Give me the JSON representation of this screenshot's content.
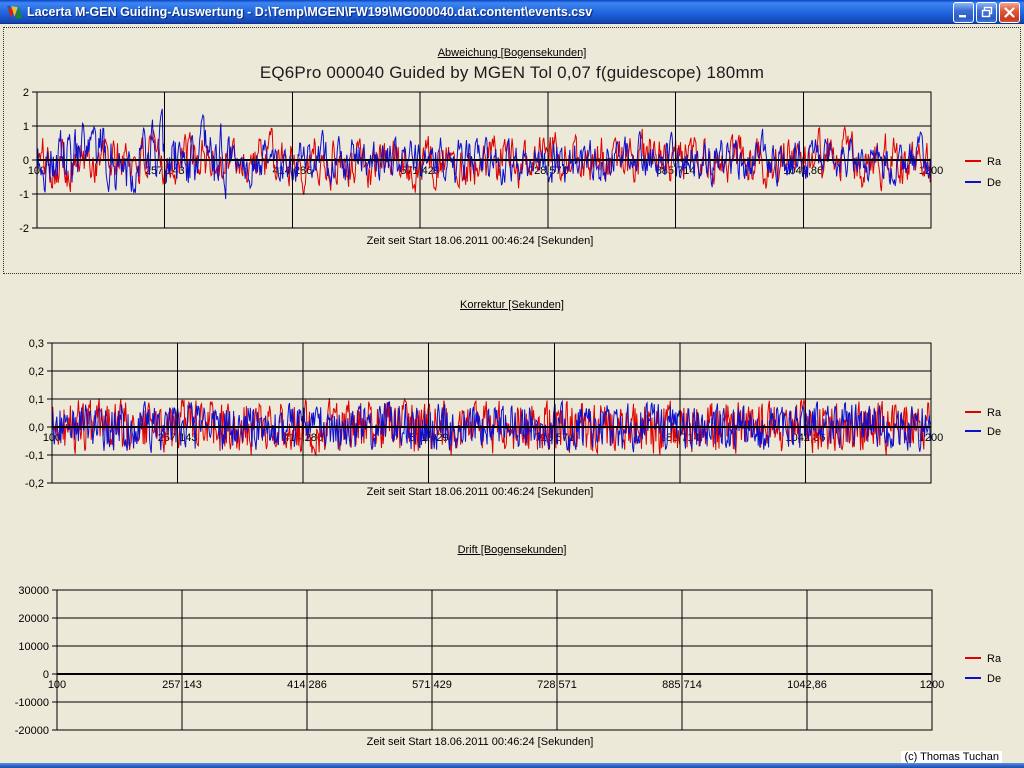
{
  "window": {
    "title": "Lacerta M-GEN Guiding-Auswertung - D:\\Temp\\MGEN\\FW199\\MG000040.dat.content\\events.csv",
    "icons": {
      "app": "app-logo-icon",
      "minimize": "minimize-icon",
      "restore": "restore-icon",
      "close": "close-icon"
    }
  },
  "footer": {
    "credit": "(c) Thomas Tuchan"
  },
  "colors": {
    "background": "#ECE9D8",
    "ra": "#E00000",
    "de": "#1010CC",
    "grid": "#000000",
    "titlebar": "#1E63DE"
  },
  "chart_data": [
    {
      "type": "line",
      "panel": "abweichung",
      "header": "Abweichung [Bogensekunden]",
      "title": "EQ6Pro 000040  Guided by MGEN Tol 0,07 f(guidescope) 180mm",
      "xlabel": "Zeit seit Start 18.06.2011 00:46:24 [Sekunden]",
      "x_range": [
        100,
        1200
      ],
      "x_ticks": [
        100,
        257.143,
        414.286,
        571.429,
        728.571,
        885.714,
        1042.86,
        1200
      ],
      "x_tick_labels": [
        "100",
        "257,143",
        "414,286",
        "571,429",
        "728,571",
        "885,714",
        "1042,86",
        "1200"
      ],
      "y_range": [
        -2,
        2
      ],
      "y_ticks": [
        2,
        1,
        0,
        -1,
        -2
      ],
      "y_tick_labels": [
        "2",
        "1",
        "0",
        "-1",
        "-2"
      ],
      "grid": true,
      "legend_position": "right",
      "series": [
        {
          "name": "Ra",
          "color": "#E00000",
          "character": "dense guiding-error noise around 0",
          "value_range": [
            -1.6,
            1.7
          ],
          "n_points": 1100,
          "seed": 101,
          "phi": 0.6,
          "amplitude": 0.55,
          "clamp": 1.9
        },
        {
          "name": "De",
          "color": "#1010CC",
          "character": "dense guiding-error noise around 0, larger excursions early",
          "value_range": [
            -1.4,
            1.5
          ],
          "n_points": 1100,
          "seed": 202,
          "phi": 0.6,
          "amplitude": 0.47,
          "clamp": 1.9,
          "early_boost": 1.5,
          "early_fraction": 0.22
        }
      ]
    },
    {
      "type": "line",
      "panel": "korrektur",
      "header": "Korrektur [Sekunden]",
      "title": "",
      "xlabel": "Zeit seit Start 18.06.2011 00:46:24 [Sekunden]",
      "x_range": [
        100,
        1200
      ],
      "x_ticks": [
        100,
        257.143,
        414.286,
        571.429,
        728.571,
        885.714,
        1042.86,
        1200
      ],
      "x_tick_labels": [
        "100",
        "257,143",
        "414,286",
        "571,429",
        "728,571",
        "885,714",
        "1042,86",
        "1200"
      ],
      "y_range": [
        -0.2,
        0.3
      ],
      "y_ticks": [
        0.3,
        0.2,
        0.1,
        0.0,
        -0.1,
        -0.2
      ],
      "y_tick_labels": [
        "0,3",
        "0,2",
        "0,1",
        "0,0",
        "-0,1",
        "-0,2"
      ],
      "grid": true,
      "legend_position": "right",
      "series": [
        {
          "name": "Ra",
          "color": "#E00000",
          "character": "spiky correction pulses around 0",
          "value_range": [
            -0.18,
            0.16
          ],
          "n_points": 1100,
          "seed": 303,
          "phi": 0.25,
          "amplitude": 0.085,
          "clamp": 0.19
        },
        {
          "name": "De",
          "color": "#1010CC",
          "character": "spiky correction pulses around 0",
          "value_range": [
            -0.19,
            0.15
          ],
          "n_points": 1100,
          "seed": 404,
          "phi": 0.25,
          "amplitude": 0.075,
          "clamp": 0.19
        }
      ]
    },
    {
      "type": "line",
      "panel": "drift",
      "header": "Drift [Bogensekunden]",
      "title": "",
      "xlabel": "Zeit seit Start 18.06.2011 00:46:24 [Sekunden]",
      "x_range": [
        100,
        1200
      ],
      "x_ticks": [
        100,
        257.143,
        414.286,
        571.429,
        728.571,
        885.714,
        1042.86,
        1200
      ],
      "x_tick_labels": [
        "100",
        "257,143",
        "414,286",
        "571,429",
        "728,571",
        "885,714",
        "1042,86",
        "1200"
      ],
      "y_range": [
        -20000,
        30000
      ],
      "y_ticks": [
        30000,
        20000,
        10000,
        0,
        -10000,
        -20000
      ],
      "y_tick_labels": [
        "30000",
        "20000",
        "10000",
        "0",
        "-10000",
        "-20000"
      ],
      "grid": true,
      "legend_position": "right",
      "series": [
        {
          "name": "Ra",
          "color": "#E00000",
          "character": "no data plotted",
          "value_range": null,
          "n_points": 0
        },
        {
          "name": "De",
          "color": "#1010CC",
          "character": "no data plotted",
          "value_range": null,
          "n_points": 0
        }
      ]
    }
  ]
}
